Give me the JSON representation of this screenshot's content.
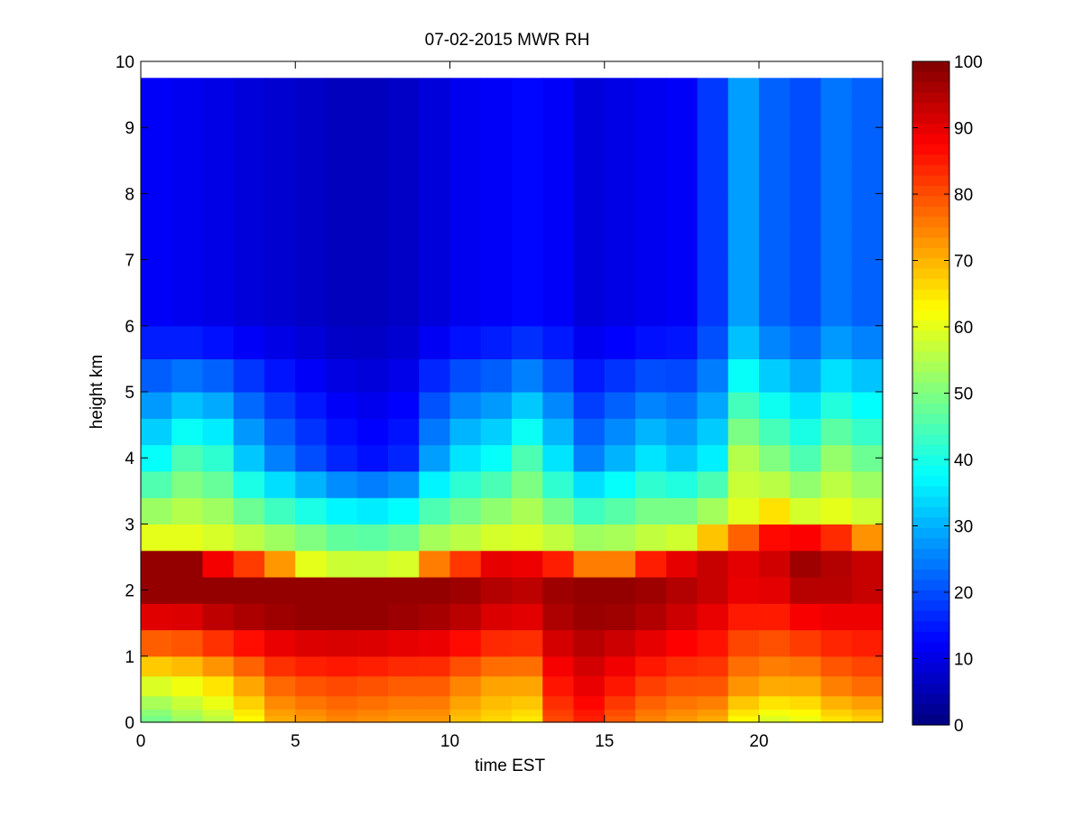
{
  "chart_data": {
    "type": "heatmap",
    "title": "07-02-2015 MWR RH",
    "xlabel": "time EST",
    "ylabel": "height km",
    "xlim": [
      0,
      24
    ],
    "ylim": [
      0,
      10
    ],
    "x_ticks": [
      "0",
      "5",
      "10",
      "15",
      "20"
    ],
    "y_ticks": [
      "0",
      "1",
      "2",
      "3",
      "4",
      "5",
      "6",
      "7",
      "8",
      "9",
      "10"
    ],
    "x": [
      0.5,
      1.5,
      2.5,
      3.5,
      4.5,
      5.5,
      6.5,
      7.5,
      8.5,
      9.5,
      10.5,
      11.5,
      12.5,
      13.5,
      14.5,
      15.5,
      16.5,
      17.5,
      18.5,
      19.5,
      20.5,
      21.5,
      22.5,
      23.5
    ],
    "layer_height_km": [
      0.0,
      0.1,
      0.2,
      0.4,
      0.7,
      1.0,
      1.4,
      1.8,
      2.2,
      2.6,
      3.0,
      3.4,
      3.8,
      4.2,
      4.6,
      5.0,
      5.5,
      6.0,
      6.5,
      7.0,
      7.5,
      8.0,
      8.5,
      9.0,
      9.5,
      9.75
    ],
    "colorbar": {
      "min": 0,
      "max": 100,
      "ticks": [
        "0",
        "10",
        "20",
        "30",
        "40",
        "50",
        "60",
        "70",
        "80",
        "90",
        "100"
      ],
      "colormap": "jet"
    },
    "surface_rh": [
      48,
      52,
      55,
      62,
      70,
      72,
      74,
      73,
      72,
      72,
      68,
      66,
      64,
      80,
      84,
      78,
      74,
      72,
      70,
      62,
      58,
      60,
      64,
      66
    ],
    "low_layer_rh": [
      60,
      62,
      66,
      72,
      78,
      80,
      81,
      80,
      79,
      79,
      75,
      72,
      72,
      86,
      90,
      86,
      82,
      80,
      80,
      74,
      72,
      72,
      76,
      78
    ],
    "peak_rh": [
      98,
      98,
      98,
      98,
      98,
      98,
      98,
      98,
      98,
      98,
      97,
      95,
      94,
      97,
      98,
      98,
      97,
      95,
      93,
      90,
      92,
      97,
      95,
      93
    ],
    "peak_height_km": [
      2.1,
      2.1,
      2.0,
      1.95,
      1.9,
      1.85,
      1.85,
      1.85,
      1.9,
      1.95,
      2.0,
      2.05,
      2.05,
      2.0,
      1.95,
      1.95,
      2.0,
      2.05,
      2.2,
      2.3,
      2.4,
      2.4,
      2.3,
      2.2
    ],
    "layer_top_km": [
      2.8,
      2.8,
      2.7,
      2.6,
      2.5,
      2.4,
      2.3,
      2.3,
      2.35,
      2.5,
      2.55,
      2.7,
      2.7,
      2.6,
      2.5,
      2.5,
      2.6,
      2.7,
      2.9,
      3.1,
      3.3,
      3.1,
      3.2,
      3.0
    ],
    "mid_rh_4km": [
      38,
      45,
      42,
      32,
      25,
      20,
      16,
      14,
      16,
      28,
      35,
      38,
      45,
      35,
      25,
      30,
      35,
      32,
      36,
      55,
      50,
      45,
      52,
      48
    ],
    "upper_rh": [
      12,
      11,
      10,
      9,
      8,
      7,
      6,
      6,
      7,
      9,
      11,
      12,
      13,
      12,
      9,
      10,
      11,
      12,
      18,
      28,
      22,
      20,
      24,
      22
    ]
  }
}
